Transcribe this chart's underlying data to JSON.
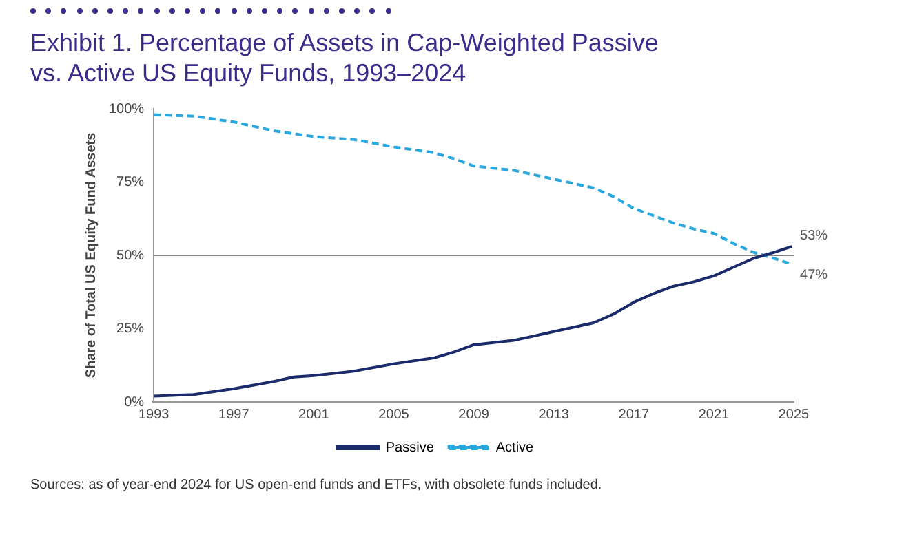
{
  "chart_data": {
    "type": "line",
    "title": "Exhibit 1. Percentage of Assets in Cap-Weighted Passive vs. Active US Equity Funds, 1993–2024",
    "ylabel": "Share of Total US Equity Fund Assets",
    "x": [
      1993,
      1995,
      1997,
      1999,
      2000,
      2001,
      2003,
      2005,
      2007,
      2008,
      2009,
      2011,
      2013,
      2015,
      2016,
      2017,
      2018,
      2019,
      2020,
      2021,
      2022,
      2023,
      2024,
      2024.9
    ],
    "series": [
      {
        "name": "Passive",
        "color": "#1b2a6b",
        "line_style": "solid",
        "values": [
          2,
          2.5,
          4.5,
          7,
          8.5,
          9,
          10.5,
          13,
          15,
          17,
          19.5,
          21,
          24,
          27,
          30,
          34,
          37,
          39.5,
          41,
          43,
          46,
          49,
          51,
          53
        ],
        "value_labels": [
          null,
          null,
          null,
          null,
          null,
          null,
          null,
          null,
          null,
          null,
          null,
          null,
          null,
          null,
          null,
          null,
          null,
          null,
          null,
          null,
          null,
          null,
          null,
          "53%"
        ]
      },
      {
        "name": "Active",
        "color": "#29a8e0",
        "line_style": "dashed",
        "values": [
          98,
          97.5,
          95.5,
          92.5,
          91.5,
          90.5,
          89.5,
          87,
          85,
          83,
          80.5,
          79,
          76,
          73,
          70,
          66,
          63.5,
          61,
          59,
          57.5,
          54,
          51,
          49,
          47
        ],
        "value_labels": [
          null,
          null,
          null,
          null,
          null,
          null,
          null,
          null,
          null,
          null,
          null,
          null,
          null,
          null,
          null,
          null,
          null,
          null,
          null,
          null,
          null,
          null,
          null,
          "47%"
        ]
      }
    ],
    "xlim": [
      1993,
      2025
    ],
    "xticks": [
      1993,
      1997,
      2001,
      2005,
      2009,
      2013,
      2017,
      2021,
      2025
    ],
    "ylim": [
      0,
      100
    ],
    "yticks": [
      {
        "value": 0,
        "label": "0%"
      },
      {
        "value": 25,
        "label": "25%"
      },
      {
        "value": 50,
        "label": "50%"
      },
      {
        "value": 75,
        "label": "75%"
      },
      {
        "value": 100,
        "label": "100%"
      }
    ],
    "ref_lines": [
      {
        "axis": "y",
        "value": 50,
        "label": null,
        "color": "#808080"
      }
    ],
    "grid": false,
    "legend": "bottom",
    "marker": "none",
    "annotations": [
      "Sources: as of year-end 2024 for US open-end funds and ETFs, with obsolete funds included."
    ]
  }
}
